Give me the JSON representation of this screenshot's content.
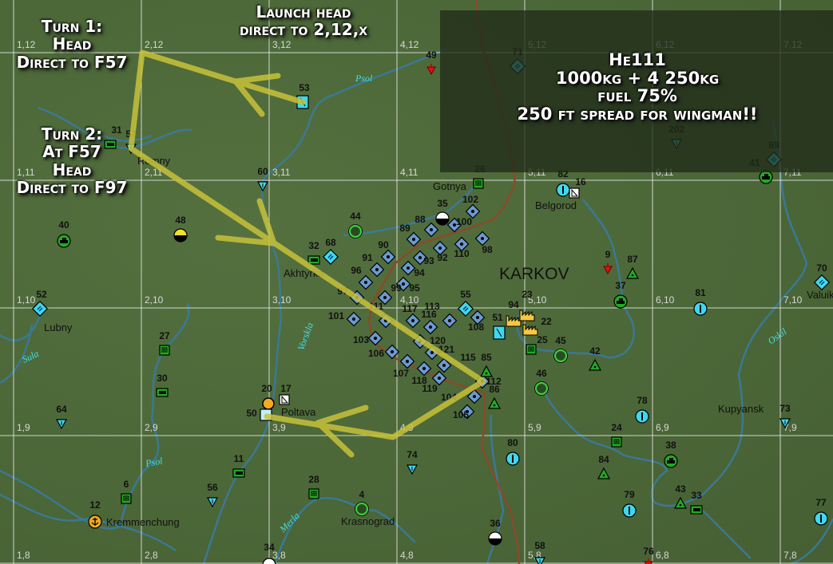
{
  "map": {
    "grid": {
      "columns": [
        1,
        2,
        3,
        4,
        5,
        6,
        7
      ],
      "rows": [
        12,
        11,
        10,
        9,
        8
      ]
    },
    "region_label": "KARKOV",
    "towns": [
      "Romny",
      "Akhtyrka",
      "Lubny",
      "Poltava",
      "Kremmenchung",
      "Krasnograd",
      "Gotnya",
      "Belgorod",
      "Valuiki",
      "Kupyansk"
    ],
    "rivers": [
      "Psol",
      "Psol",
      "Vorskla",
      "Sula",
      "Merla",
      "Oskil"
    ],
    "colors": {
      "flight_path": "#c8c23a",
      "front_line": "#8a4a2a",
      "river": "#3a7aa0",
      "grid": "#e8e8e8",
      "airfield": "#6a9ad0",
      "friendly_green": "#22aa22",
      "cyan": "#3fd8f0"
    },
    "markers": [
      {
        "label": "49",
        "type": "red-pin"
      },
      {
        "label": "71",
        "type": "cyan-diamond"
      },
      {
        "label": "53",
        "type": "cyan-square"
      },
      {
        "label": "31",
        "type": "truck"
      },
      {
        "label": "57",
        "type": "inv-triangle"
      },
      {
        "label": "60",
        "type": "inv-triangle"
      },
      {
        "label": "202",
        "type": "inv-triangle"
      },
      {
        "label": "69",
        "type": "cyan-diamond"
      },
      {
        "label": "41",
        "type": "tank"
      },
      {
        "label": "26",
        "type": "depot"
      },
      {
        "label": "82",
        "type": "cyan-circle"
      },
      {
        "label": "16",
        "type": "white-square"
      },
      {
        "label": "44",
        "type": "green-ring"
      },
      {
        "label": "48",
        "type": "half-circle-yellow"
      },
      {
        "label": "35",
        "type": "half-circle"
      },
      {
        "label": "40",
        "type": "tank"
      },
      {
        "label": "32",
        "type": "truck"
      },
      {
        "label": "68",
        "type": "cyan-diamond"
      },
      {
        "label": "52",
        "type": "cyan-diamond"
      },
      {
        "label": "9",
        "type": "red-pin"
      },
      {
        "label": "87",
        "type": "triangle"
      },
      {
        "label": "37",
        "type": "tank"
      },
      {
        "label": "70",
        "type": "cyan-diamond"
      },
      {
        "label": "81",
        "type": "cyan-circle"
      },
      {
        "label": "102",
        "type": "airfield"
      },
      {
        "label": "100",
        "type": "airfield"
      },
      {
        "label": "88",
        "type": "airfield"
      },
      {
        "label": "89",
        "type": "airfield"
      },
      {
        "label": "98",
        "type": "airfield"
      },
      {
        "label": "110",
        "type": "airfield"
      },
      {
        "label": "92",
        "type": "airfield"
      },
      {
        "label": "90",
        "type": "airfield"
      },
      {
        "label": "93",
        "type": "airfield"
      },
      {
        "label": "91",
        "type": "airfield"
      },
      {
        "label": "94",
        "type": "airfield"
      },
      {
        "label": "96",
        "type": "airfield"
      },
      {
        "label": "95",
        "type": "airfield"
      },
      {
        "label": "97",
        "type": "airfield"
      },
      {
        "label": "99",
        "type": "airfield"
      },
      {
        "label": "117",
        "type": "airfield"
      },
      {
        "label": "116",
        "type": "airfield"
      },
      {
        "label": "113",
        "type": "airfield"
      },
      {
        "label": "108",
        "type": "airfield"
      },
      {
        "label": "101",
        "type": "airfield"
      },
      {
        "label": "111",
        "type": "airfield"
      },
      {
        "label": "103",
        "type": "airfield"
      },
      {
        "label": "106",
        "type": "airfield"
      },
      {
        "label": "120",
        "type": "airfield"
      },
      {
        "label": "121",
        "type": "airfield"
      },
      {
        "label": "107",
        "type": "airfield"
      },
      {
        "label": "115",
        "type": "airfield"
      },
      {
        "label": "118",
        "type": "airfield"
      },
      {
        "label": "112",
        "type": "airfield"
      },
      {
        "label": "119",
        "type": "airfield"
      },
      {
        "label": "104",
        "type": "airfield"
      },
      {
        "label": "105",
        "type": "airfield"
      },
      {
        "label": "55",
        "type": "cyan-diamond"
      },
      {
        "label": "94",
        "type": "factory"
      },
      {
        "label": "23",
        "type": "factory"
      },
      {
        "label": "22",
        "type": "factory"
      },
      {
        "label": "51",
        "type": "cyan-square"
      },
      {
        "label": "25",
        "type": "depot"
      },
      {
        "label": "45",
        "type": "green-ring"
      },
      {
        "label": "42",
        "type": "triangle"
      },
      {
        "label": "85",
        "type": "triangle"
      },
      {
        "label": "86",
        "type": "triangle"
      },
      {
        "label": "46",
        "type": "green-ring"
      },
      {
        "label": "27",
        "type": "depot"
      },
      {
        "label": "30",
        "type": "truck"
      },
      {
        "label": "64",
        "type": "inv-triangle"
      },
      {
        "label": "20",
        "type": "orange-circle"
      },
      {
        "label": "17",
        "type": "white-square"
      },
      {
        "label": "50",
        "type": "cyan-square-light"
      },
      {
        "label": "78",
        "type": "cyan-circle"
      },
      {
        "label": "73",
        "type": "inv-triangle"
      },
      {
        "label": "24",
        "type": "depot"
      },
      {
        "label": "80",
        "type": "cyan-circle"
      },
      {
        "label": "38",
        "type": "tank"
      },
      {
        "label": "74",
        "type": "inv-triangle"
      },
      {
        "label": "84",
        "type": "triangle"
      },
      {
        "label": "11",
        "type": "truck"
      },
      {
        "label": "6",
        "type": "depot"
      },
      {
        "label": "56",
        "type": "inv-triangle"
      },
      {
        "label": "28",
        "type": "depot"
      },
      {
        "label": "4",
        "type": "green-ring"
      },
      {
        "label": "12",
        "type": "anchor"
      },
      {
        "label": "79",
        "type": "cyan-circle"
      },
      {
        "label": "43",
        "type": "triangle"
      },
      {
        "label": "33",
        "type": "truck"
      },
      {
        "label": "77",
        "type": "cyan-circle"
      },
      {
        "label": "36",
        "type": "half-circle"
      },
      {
        "label": "34",
        "type": "half-circle"
      },
      {
        "label": "58",
        "type": "inv-triangle"
      },
      {
        "label": "76",
        "type": "red-pin"
      }
    ]
  },
  "notes": {
    "turn1": [
      "Turn 1:",
      "Head",
      "Direct to F57"
    ],
    "turn2": [
      "Turn 2:",
      "At F57",
      "Head",
      "Direct to F97"
    ],
    "launch": [
      "Launch head",
      "direct to 2,12,x"
    ],
    "loadout": [
      "He111",
      "1000kg + 4 250kg",
      "fuel 75%",
      "250 ft spread for wingman!!"
    ]
  }
}
